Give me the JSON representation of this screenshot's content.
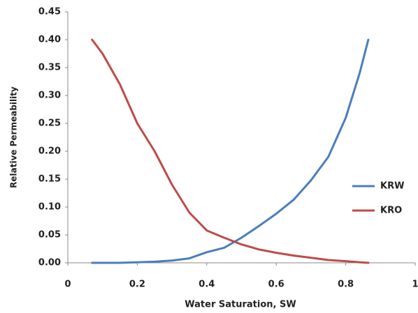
{
  "chart_data": {
    "type": "line",
    "x_label": "Water Saturation, SW",
    "y_label": "Relative Permeability",
    "x": [
      0.07,
      0.1,
      0.15,
      0.2,
      0.25,
      0.3,
      0.35,
      0.4,
      0.45,
      0.5,
      0.55,
      0.6,
      0.65,
      0.7,
      0.75,
      0.8,
      0.84,
      0.865
    ],
    "series": [
      {
        "name": "KRW",
        "color": "#4a7ebb",
        "values": [
          0,
          0,
          0,
          0.001,
          0.002,
          0.004,
          0.008,
          0.019,
          0.027,
          0.045,
          0.066,
          0.088,
          0.113,
          0.148,
          0.19,
          0.26,
          0.34,
          0.4
        ]
      },
      {
        "name": "KRO",
        "color": "#be4b48",
        "values": [
          0.4,
          0.375,
          0.32,
          0.25,
          0.2,
          0.14,
          0.09,
          0.058,
          0.045,
          0.033,
          0.024,
          0.018,
          0.013,
          0.009,
          0.005,
          0.003,
          0.001,
          0
        ]
      }
    ],
    "xlim": [
      0,
      1
    ],
    "xticks": [
      0,
      0.2,
      0.4,
      0.6,
      0.8,
      1
    ],
    "ylim": [
      0,
      0.45
    ],
    "yticks": [
      {
        "value": 0,
        "label": "0.00"
      },
      {
        "value": 0.05,
        "label": "0.05"
      },
      {
        "value": 0.1,
        "label": "0.10"
      },
      {
        "value": 0.15,
        "label": "0.15"
      },
      {
        "value": 0.2,
        "label": "0.20"
      },
      {
        "value": 0.25,
        "label": "0.25"
      },
      {
        "value": 0.3,
        "label": "0.30"
      },
      {
        "value": 0.35,
        "label": "0.35"
      },
      {
        "value": 0.4,
        "label": "0.40"
      },
      {
        "value": 0.45,
        "label": "0.45"
      }
    ],
    "grid": false,
    "legend": "right"
  }
}
